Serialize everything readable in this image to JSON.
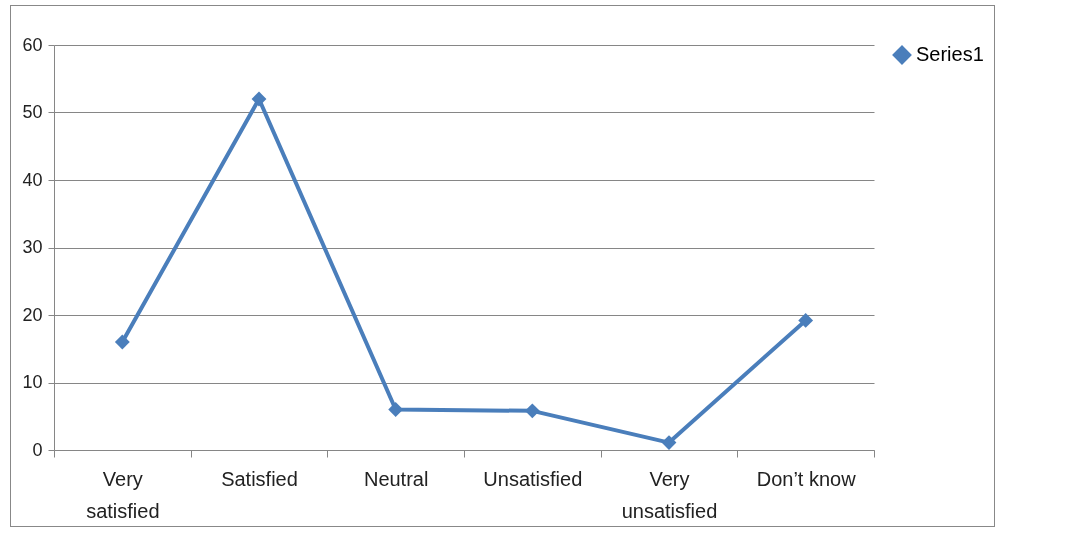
{
  "chart_data": {
    "type": "line",
    "categories": [
      "Very satisfied",
      "Satisfied",
      "Neutral",
      "Unsatisfied",
      "Very unsatisfied",
      "Don’t know"
    ],
    "series": [
      {
        "name": "Series1",
        "color": "#4a7ebb",
        "values": [
          16,
          52,
          6,
          5.8,
          1.1,
          19.2
        ]
      }
    ],
    "ylim": [
      0,
      60
    ],
    "yticks": [
      0,
      10,
      20,
      30,
      40,
      50,
      60
    ],
    "grid": "y",
    "legend": "right",
    "marker": "diamond",
    "line_style": "solid"
  }
}
